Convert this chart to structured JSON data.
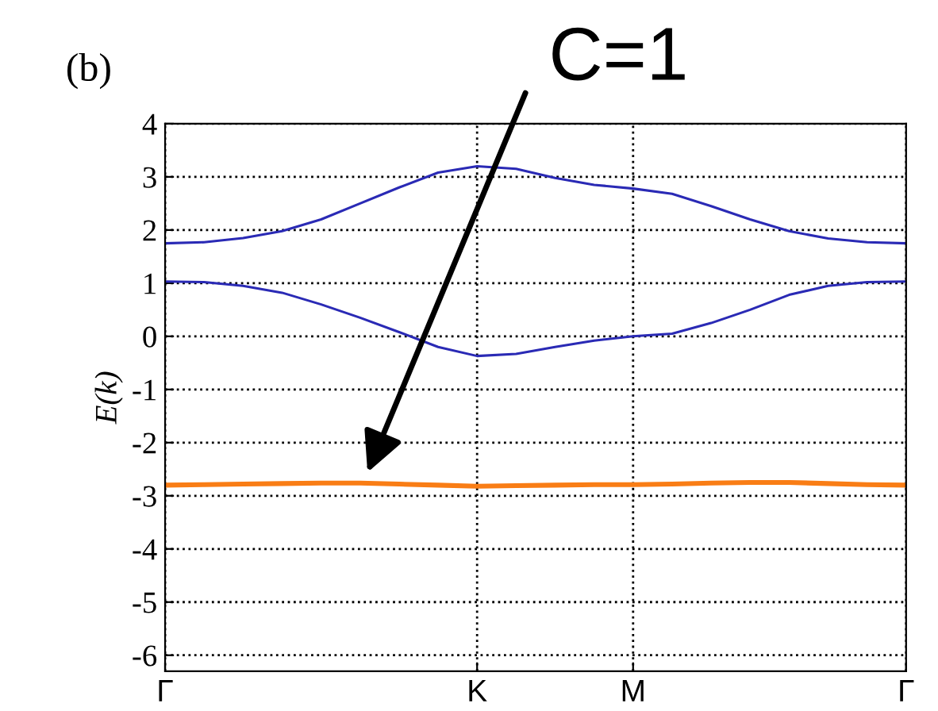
{
  "chart_data": {
    "type": "line",
    "ylabel": "E(k)",
    "annotations": [
      "(b)",
      "C=1"
    ],
    "categories": [
      "Γ",
      null,
      null,
      null,
      null,
      null,
      null,
      null,
      "K",
      null,
      null,
      null,
      "M",
      null,
      null,
      null,
      null,
      null,
      null,
      "Γ"
    ],
    "ylim": [
      -6.3,
      4
    ],
    "yticks": [
      -6,
      -5,
      -4,
      -3,
      -2,
      -1,
      0,
      1,
      2,
      3,
      4
    ],
    "grid": true,
    "line_style": "solid",
    "marker": "none",
    "series": [
      {
        "color": "#2a2ab5",
        "values": [
          1.75,
          1.77,
          1.85,
          1.98,
          2.2,
          2.5,
          2.8,
          3.08,
          3.2,
          3.15,
          2.98,
          2.85,
          2.78,
          2.68,
          2.45,
          2.2,
          1.98,
          1.84,
          1.77,
          1.75
        ]
      },
      {
        "color": "#2a2ab5",
        "values": [
          1.03,
          1.02,
          0.95,
          0.82,
          0.6,
          0.35,
          0.08,
          -0.2,
          -0.37,
          -0.33,
          -0.2,
          -0.08,
          0.0,
          0.05,
          0.25,
          0.5,
          0.78,
          0.95,
          1.02,
          1.03
        ]
      },
      {
        "color": "#f97d15",
        "values": [
          -2.8,
          -2.79,
          -2.78,
          -2.77,
          -2.76,
          -2.76,
          -2.78,
          -2.8,
          -2.82,
          -2.81,
          -2.8,
          -2.79,
          -2.79,
          -2.78,
          -2.76,
          -2.75,
          -2.75,
          -2.77,
          -2.79,
          -2.8
        ]
      }
    ]
  }
}
